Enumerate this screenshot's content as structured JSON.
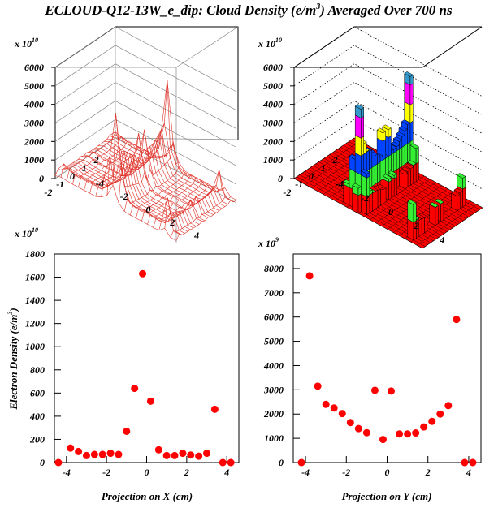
{
  "title": "ECLOUD-Q12-13W_e_dip: Cloud Density (e/m",
  "title_sup": "3",
  "title_tail": ") Averaged Over 700 ns",
  "surface_plot": {
    "exponent_label": "x 10",
    "exponent_sup": "10",
    "z_ticks": [
      "0",
      "1000",
      "2000",
      "3000",
      "4000",
      "5000",
      "6000"
    ],
    "y_ticks": [
      "2",
      "1",
      "0",
      "-1",
      "-2"
    ],
    "x_ticks": [
      "-4",
      "-2",
      "0",
      "2",
      "4"
    ]
  },
  "lego_plot": {
    "exponent_label": "x 10",
    "exponent_sup": "10",
    "z_ticks": [
      "0",
      "1000",
      "2000",
      "3000",
      "4000",
      "5000",
      "6000"
    ],
    "y_ticks": [
      "2",
      "1",
      "0",
      "-1",
      "-2"
    ],
    "x_ticks": [
      "-4",
      "-2",
      "0",
      "2",
      "4"
    ],
    "colors": {
      "red": "#ff0000",
      "green": "#33ee33",
      "blue": "#0044ff",
      "yellow": "#ffff00",
      "magenta": "#ff00ff",
      "cyan": "#3399cc"
    }
  },
  "chart_data": [
    {
      "type": "scatter",
      "exponent_label": "x 10",
      "exponent_sup": "10",
      "xlabel": "Projection on X (cm)",
      "ylabel": "Electron Density (e/m",
      "ylabel_sup": "3",
      "ylabel_tail": ")",
      "xlim": [
        -4.6,
        4.6
      ],
      "ylim": [
        0,
        1800
      ],
      "x_ticks": [
        -4,
        -2,
        0,
        2,
        4
      ],
      "y_ticks": [
        0,
        200,
        400,
        600,
        800,
        1000,
        1200,
        1400,
        1600,
        1800
      ],
      "marker_color": "#ff0000",
      "x": [
        -4.4,
        -3.8,
        -3.4,
        -3.0,
        -2.6,
        -2.2,
        -1.8,
        -1.4,
        -1.0,
        -0.6,
        -0.2,
        0.2,
        0.6,
        1.0,
        1.4,
        1.8,
        2.2,
        2.6,
        3.0,
        3.4,
        3.8,
        4.2
      ],
      "y": [
        0,
        125,
        95,
        60,
        70,
        70,
        80,
        70,
        270,
        640,
        1630,
        530,
        110,
        60,
        60,
        80,
        65,
        55,
        80,
        460,
        0,
        0
      ]
    },
    {
      "type": "scatter",
      "exponent_label": "x 10",
      "exponent_sup": "9",
      "xlabel": "Projection on Y (cm)",
      "xlim": [
        -4.6,
        4.6
      ],
      "ylim": [
        0,
        8600
      ],
      "x_ticks": [
        -4,
        -2,
        0,
        2,
        4
      ],
      "y_ticks": [
        0,
        1000,
        2000,
        3000,
        4000,
        5000,
        6000,
        7000,
        8000
      ],
      "marker_color": "#ff0000",
      "x": [
        -4.2,
        -3.8,
        -3.4,
        -3.0,
        -2.6,
        -2.2,
        -1.8,
        -1.4,
        -1.0,
        -0.6,
        -0.2,
        0.2,
        0.6,
        1.0,
        1.4,
        1.8,
        2.2,
        2.6,
        3.0,
        3.4,
        3.8,
        4.2
      ],
      "y": [
        0,
        7700,
        3150,
        2400,
        2250,
        2020,
        1650,
        1400,
        1230,
        2980,
        950,
        2950,
        1180,
        1180,
        1220,
        1470,
        1700,
        2000,
        2350,
        5900,
        0,
        0
      ]
    }
  ]
}
